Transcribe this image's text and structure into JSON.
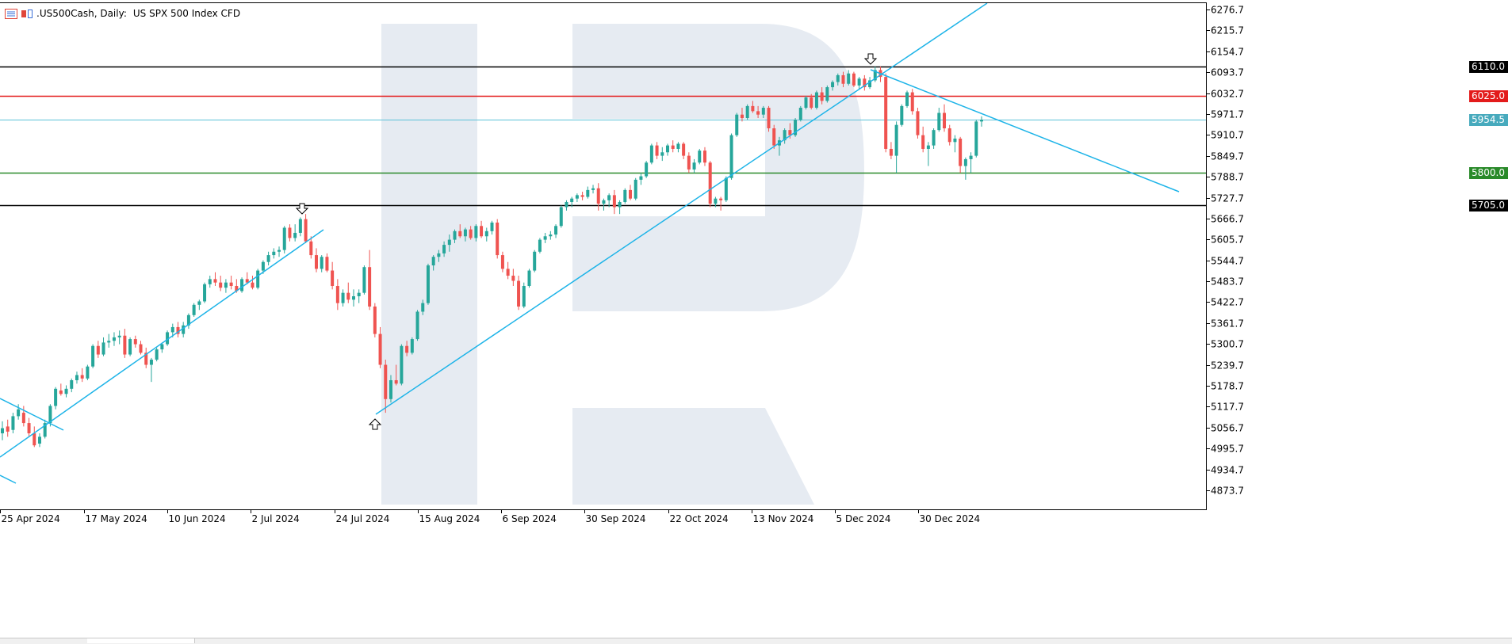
{
  "header": {
    "symbol": ".US500Cash, Daily:",
    "description": "US SPX 500 Index CFD",
    "icons": [
      "chart-menu-icon",
      "candles-icon"
    ]
  },
  "colors": {
    "bull": "#26a69a",
    "bear": "#ef5350",
    "trend": "#1eb4e8",
    "watermark": "#e6ebf2",
    "resistance": "#e31b1b",
    "support": "#2a8a2a",
    "level": "#000000",
    "current": "#5cc2d8"
  },
  "levels": [
    {
      "label": "6110.0",
      "value": 6110.0,
      "color": "#000000",
      "text_color": "#ffffff",
      "tag_bg": "#000000"
    },
    {
      "label": "6025.0",
      "value": 6025.0,
      "color": "#e31b1b",
      "text_color": "#ffffff",
      "tag_bg": "#e31b1b"
    },
    {
      "label": "5954.5",
      "value": 5954.5,
      "color": "#5cc2d8",
      "text_color": "#ffffff",
      "tag_bg": "#47aabd"
    },
    {
      "label": "5800.0",
      "value": 5800.0,
      "color": "#2a8a2a",
      "text_color": "#ffffff",
      "tag_bg": "#2a8a2a"
    },
    {
      "label": "5705.0",
      "value": 5705.0,
      "color": "#000000",
      "text_color": "#ffffff",
      "tag_bg": "#000000"
    }
  ],
  "price_axis": {
    "ticks": [
      "6276.7",
      "6215.7",
      "6154.7",
      "6093.7",
      "6032.7",
      "5971.7",
      "5910.7",
      "5849.7",
      "5788.7",
      "5727.7",
      "5666.7",
      "5605.7",
      "5544.7",
      "5483.7",
      "5422.7",
      "5361.7",
      "5300.7",
      "5239.7",
      "5178.7",
      "5117.7",
      "5056.7",
      "4995.7",
      "4934.7",
      "4873.7"
    ]
  },
  "time_axis": {
    "labels": [
      "25 Apr 2024",
      "17 May 2024",
      "10 Jun 2024",
      "2 Jul 2024",
      "24 Jul 2024",
      "15 Aug 2024",
      "6 Sep 2024",
      "30 Sep 2024",
      "22 Oct 2024",
      "13 Nov 2024",
      "5 Dec 2024",
      "30 Dec 2024"
    ]
  },
  "chart_data": {
    "type": "candlestick",
    "title": ".US500Cash, Daily:  US SPX 500 Index CFD",
    "ylim": [
      4850,
      6300
    ],
    "x_dates": [
      "2024-04-25",
      "2024-05-17",
      "2024-06-10",
      "2024-07-02",
      "2024-07-24",
      "2024-08-15",
      "2024-09-06",
      "2024-09-30",
      "2024-10-22",
      "2024-11-13",
      "2024-12-05",
      "2024-12-30"
    ],
    "candles_ohlc": [
      [
        5040,
        5075,
        5020,
        5055
      ],
      [
        5060,
        5080,
        5030,
        5045
      ],
      [
        5050,
        5100,
        5040,
        5090
      ],
      [
        5090,
        5125,
        5080,
        5110
      ],
      [
        5100,
        5120,
        5060,
        5070
      ],
      [
        5070,
        5085,
        5030,
        5040
      ],
      [
        5040,
        5060,
        5000,
        5005
      ],
      [
        5010,
        5040,
        5000,
        5030
      ],
      [
        5030,
        5080,
        5025,
        5070
      ],
      [
        5070,
        5125,
        5060,
        5120
      ],
      [
        5120,
        5175,
        5110,
        5170
      ],
      [
        5165,
        5185,
        5150,
        5155
      ],
      [
        5155,
        5180,
        5145,
        5170
      ],
      [
        5170,
        5200,
        5160,
        5195
      ],
      [
        5195,
        5220,
        5185,
        5210
      ],
      [
        5210,
        5230,
        5190,
        5200
      ],
      [
        5200,
        5240,
        5195,
        5235
      ],
      [
        5235,
        5300,
        5230,
        5295
      ],
      [
        5295,
        5310,
        5260,
        5270
      ],
      [
        5270,
        5320,
        5265,
        5305
      ],
      [
        5305,
        5330,
        5290,
        5310
      ],
      [
        5310,
        5335,
        5295,
        5320
      ],
      [
        5320,
        5340,
        5300,
        5325
      ],
      [
        5325,
        5345,
        5260,
        5270
      ],
      [
        5270,
        5320,
        5265,
        5315
      ],
      [
        5315,
        5325,
        5290,
        5300
      ],
      [
        5300,
        5310,
        5270,
        5275
      ],
      [
        5275,
        5290,
        5230,
        5240
      ],
      [
        5240,
        5260,
        5190,
        5255
      ],
      [
        5255,
        5290,
        5250,
        5285
      ],
      [
        5285,
        5305,
        5275,
        5300
      ],
      [
        5300,
        5340,
        5295,
        5335
      ],
      [
        5335,
        5360,
        5320,
        5350
      ],
      [
        5350,
        5365,
        5320,
        5330
      ],
      [
        5330,
        5365,
        5320,
        5355
      ],
      [
        5355,
        5390,
        5345,
        5385
      ],
      [
        5385,
        5420,
        5380,
        5415
      ],
      [
        5415,
        5430,
        5400,
        5425
      ],
      [
        5425,
        5480,
        5420,
        5475
      ],
      [
        5475,
        5500,
        5465,
        5490
      ],
      [
        5490,
        5510,
        5470,
        5480
      ],
      [
        5480,
        5500,
        5455,
        5465
      ],
      [
        5465,
        5490,
        5450,
        5480
      ],
      [
        5480,
        5500,
        5460,
        5470
      ],
      [
        5470,
        5490,
        5450,
        5455
      ],
      [
        5455,
        5495,
        5450,
        5490
      ],
      [
        5490,
        5510,
        5475,
        5480
      ],
      [
        5480,
        5500,
        5460,
        5465
      ],
      [
        5465,
        5520,
        5460,
        5515
      ],
      [
        5515,
        5545,
        5505,
        5540
      ],
      [
        5540,
        5570,
        5530,
        5560
      ],
      [
        5560,
        5580,
        5550,
        5570
      ],
      [
        5570,
        5585,
        5555,
        5575
      ],
      [
        5575,
        5645,
        5565,
        5640
      ],
      [
        5640,
        5650,
        5600,
        5610
      ],
      [
        5610,
        5650,
        5600,
        5625
      ],
      [
        5625,
        5670,
        5615,
        5665
      ],
      [
        5665,
        5680,
        5595,
        5600
      ],
      [
        5600,
        5615,
        5550,
        5560
      ],
      [
        5560,
        5580,
        5510,
        5520
      ],
      [
        5520,
        5560,
        5510,
        5555
      ],
      [
        5555,
        5565,
        5510,
        5515
      ],
      [
        5515,
        5540,
        5460,
        5470
      ],
      [
        5470,
        5490,
        5400,
        5420
      ],
      [
        5420,
        5460,
        5410,
        5450
      ],
      [
        5450,
        5480,
        5420,
        5430
      ],
      [
        5430,
        5460,
        5410,
        5440
      ],
      [
        5440,
        5460,
        5420,
        5450
      ],
      [
        5450,
        5530,
        5445,
        5525
      ],
      [
        5525,
        5575,
        5400,
        5410
      ],
      [
        5410,
        5420,
        5320,
        5330
      ],
      [
        5330,
        5350,
        5230,
        5240
      ],
      [
        5240,
        5255,
        5100,
        5140
      ],
      [
        5140,
        5210,
        5130,
        5195
      ],
      [
        5195,
        5240,
        5180,
        5185
      ],
      [
        5185,
        5300,
        5180,
        5295
      ],
      [
        5295,
        5310,
        5265,
        5275
      ],
      [
        5275,
        5320,
        5270,
        5315
      ],
      [
        5315,
        5400,
        5310,
        5395
      ],
      [
        5395,
        5430,
        5385,
        5420
      ],
      [
        5420,
        5535,
        5415,
        5530
      ],
      [
        5530,
        5560,
        5515,
        5555
      ],
      [
        5555,
        5575,
        5540,
        5565
      ],
      [
        5565,
        5600,
        5555,
        5590
      ],
      [
        5590,
        5620,
        5570,
        5605
      ],
      [
        5605,
        5635,
        5595,
        5630
      ],
      [
        5630,
        5650,
        5610,
        5615
      ],
      [
        5615,
        5640,
        5600,
        5635
      ],
      [
        5635,
        5645,
        5605,
        5610
      ],
      [
        5610,
        5650,
        5600,
        5645
      ],
      [
        5645,
        5660,
        5610,
        5615
      ],
      [
        5615,
        5640,
        5600,
        5630
      ],
      [
        5630,
        5660,
        5620,
        5655
      ],
      [
        5655,
        5665,
        5550,
        5560
      ],
      [
        5560,
        5570,
        5510,
        5520
      ],
      [
        5520,
        5540,
        5490,
        5500
      ],
      [
        5500,
        5520,
        5470,
        5485
      ],
      [
        5485,
        5500,
        5400,
        5410
      ],
      [
        5410,
        5480,
        5405,
        5470
      ],
      [
        5470,
        5520,
        5465,
        5515
      ],
      [
        5515,
        5575,
        5510,
        5570
      ],
      [
        5570,
        5610,
        5565,
        5605
      ],
      [
        5605,
        5625,
        5595,
        5615
      ],
      [
        5615,
        5630,
        5605,
        5620
      ],
      [
        5620,
        5650,
        5610,
        5645
      ],
      [
        5645,
        5705,
        5640,
        5700
      ],
      [
        5700,
        5720,
        5690,
        5715
      ],
      [
        5715,
        5730,
        5700,
        5725
      ],
      [
        5725,
        5740,
        5715,
        5735
      ],
      [
        5735,
        5745,
        5720,
        5730
      ],
      [
        5730,
        5760,
        5725,
        5750
      ],
      [
        5750,
        5765,
        5740,
        5755
      ],
      [
        5755,
        5770,
        5690,
        5710
      ],
      [
        5710,
        5725,
        5690,
        5720
      ],
      [
        5720,
        5740,
        5700,
        5735
      ],
      [
        5735,
        5750,
        5680,
        5700
      ],
      [
        5700,
        5720,
        5680,
        5715
      ],
      [
        5715,
        5755,
        5710,
        5750
      ],
      [
        5750,
        5765,
        5720,
        5725
      ],
      [
        5725,
        5785,
        5720,
        5780
      ],
      [
        5780,
        5800,
        5765,
        5790
      ],
      [
        5790,
        5835,
        5785,
        5830
      ],
      [
        5830,
        5885,
        5825,
        5880
      ],
      [
        5880,
        5890,
        5840,
        5850
      ],
      [
        5850,
        5875,
        5835,
        5860
      ],
      [
        5860,
        5885,
        5850,
        5880
      ],
      [
        5880,
        5895,
        5860,
        5870
      ],
      [
        5870,
        5890,
        5860,
        5885
      ],
      [
        5885,
        5890,
        5840,
        5850
      ],
      [
        5850,
        5860,
        5800,
        5810
      ],
      [
        5810,
        5840,
        5800,
        5830
      ],
      [
        5830,
        5870,
        5825,
        5865
      ],
      [
        5865,
        5875,
        5820,
        5830
      ],
      [
        5830,
        5835,
        5700,
        5710
      ],
      [
        5710,
        5730,
        5700,
        5725
      ],
      [
        5725,
        5730,
        5690,
        5720
      ],
      [
        5720,
        5790,
        5715,
        5785
      ],
      [
        5785,
        5915,
        5780,
        5910
      ],
      [
        5910,
        5975,
        5905,
        5970
      ],
      [
        5970,
        5990,
        5950,
        5960
      ],
      [
        5960,
        6000,
        5955,
        5995
      ],
      [
        5995,
        6010,
        5975,
        5980
      ],
      [
        5980,
        5995,
        5960,
        5970
      ],
      [
        5970,
        5995,
        5960,
        5990
      ],
      [
        5990,
        5995,
        5920,
        5930
      ],
      [
        5930,
        5940,
        5870,
        5880
      ],
      [
        5880,
        5905,
        5850,
        5895
      ],
      [
        5895,
        5930,
        5885,
        5925
      ],
      [
        5925,
        5945,
        5900,
        5910
      ],
      [
        5910,
        5960,
        5905,
        5955
      ],
      [
        5955,
        5995,
        5950,
        5990
      ],
      [
        5990,
        6025,
        5985,
        6020
      ],
      [
        6020,
        6030,
        5985,
        5990
      ],
      [
        5990,
        6040,
        5985,
        6035
      ],
      [
        6035,
        6050,
        6000,
        6010
      ],
      [
        6010,
        6055,
        6005,
        6050
      ],
      [
        6050,
        6070,
        6040,
        6065
      ],
      [
        6065,
        6090,
        6055,
        6085
      ],
      [
        6085,
        6095,
        6050,
        6060
      ],
      [
        6060,
        6100,
        6055,
        6090
      ],
      [
        6090,
        6095,
        6050,
        6055
      ],
      [
        6055,
        6080,
        6045,
        6075
      ],
      [
        6075,
        6085,
        6040,
        6050
      ],
      [
        6050,
        6080,
        6045,
        6070
      ],
      [
        6070,
        6110,
        6065,
        6100
      ],
      [
        6100,
        6110,
        6065,
        6080
      ],
      [
        6080,
        6090,
        5860,
        5870
      ],
      [
        5870,
        5890,
        5840,
        5850
      ],
      [
        5850,
        5950,
        5800,
        5940
      ],
      [
        5940,
        6000,
        5935,
        5995
      ],
      [
        5995,
        6040,
        5990,
        6035
      ],
      [
        6035,
        6045,
        5970,
        5980
      ],
      [
        5980,
        5990,
        5900,
        5910
      ],
      [
        5910,
        5935,
        5860,
        5870
      ],
      [
        5870,
        5890,
        5820,
        5880
      ],
      [
        5880,
        5930,
        5870,
        5925
      ],
      [
        5925,
        5990,
        5920,
        5975
      ],
      [
        5975,
        6000,
        5920,
        5930
      ],
      [
        5930,
        5940,
        5880,
        5890
      ],
      [
        5890,
        5910,
        5860,
        5900
      ],
      [
        5900,
        5905,
        5800,
        5820
      ],
      [
        5820,
        5845,
        5780,
        5840
      ],
      [
        5840,
        5860,
        5800,
        5850
      ],
      [
        5850,
        5955,
        5845,
        5950
      ],
      [
        5950,
        5965,
        5935,
        5955
      ]
    ],
    "annotations": [
      "down-arrow at Jul 2024 high",
      "up-arrow at Aug 2024 low",
      "down-arrow at Dec 2024 high"
    ],
    "trendlines": 5,
    "grid": false
  }
}
